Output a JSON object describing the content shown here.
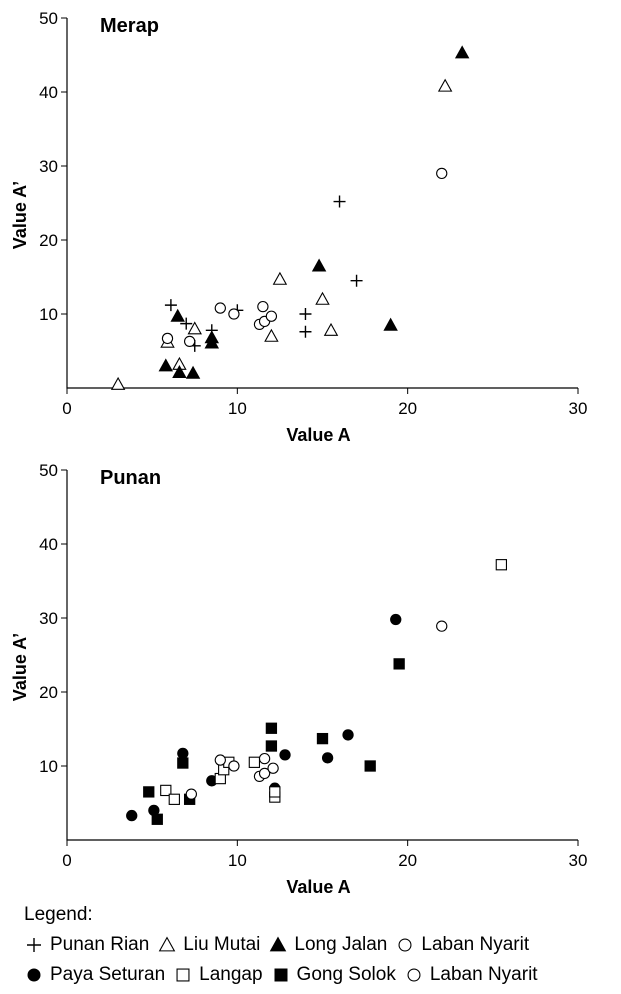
{
  "chart_data": [
    {
      "type": "scatter",
      "title": "Merap",
      "xlabel": "Value A",
      "ylabel": "Value A’",
      "xlim": [
        0,
        30
      ],
      "ylim": [
        0,
        50
      ],
      "xticks": [
        "0",
        "10",
        "20",
        "30"
      ],
      "yticks": [
        "10",
        "20",
        "30",
        "40",
        "50"
      ],
      "grid": false,
      "series": [
        {
          "name": "Punan Rian",
          "marker": "plus",
          "points": [
            [
              6.1,
              11.2
            ],
            [
              7,
              8.7
            ],
            [
              8.5,
              7.8
            ],
            [
              7.5,
              5.7
            ],
            [
              10,
              10.5
            ],
            [
              14,
              10
            ],
            [
              14,
              7.6
            ],
            [
              16,
              25.2
            ],
            [
              17,
              14.5
            ]
          ]
        },
        {
          "name": "Liu Mutai",
          "marker": "triangle-open",
          "points": [
            [
              3,
              0.5
            ],
            [
              5.9,
              6.2
            ],
            [
              6.6,
              3.2
            ],
            [
              7.5,
              8
            ],
            [
              12,
              7
            ],
            [
              12.5,
              14.7
            ],
            [
              15,
              12
            ],
            [
              15.5,
              7.8
            ],
            [
              22.2,
              40.8
            ]
          ]
        },
        {
          "name": "Long Jalan",
          "marker": "triangle-filled",
          "points": [
            [
              5.8,
              3
            ],
            [
              6.5,
              9.7
            ],
            [
              6.6,
              2.1
            ],
            [
              7.4,
              2
            ],
            [
              8.5,
              6.8
            ],
            [
              8.5,
              6.1
            ],
            [
              14.8,
              16.5
            ],
            [
              19,
              8.5
            ],
            [
              23.2,
              45.3
            ]
          ]
        },
        {
          "name": "Laban Nyarit",
          "marker": "circle-open",
          "points": [
            [
              5.9,
              6.7
            ],
            [
              7.2,
              6.3
            ],
            [
              9,
              10.8
            ],
            [
              9.8,
              10
            ],
            [
              11.3,
              8.6
            ],
            [
              11.5,
              11
            ],
            [
              11.6,
              9
            ],
            [
              12,
              9.7
            ],
            [
              22,
              29
            ]
          ]
        }
      ]
    },
    {
      "type": "scatter",
      "title": "Punan",
      "xlabel": "Value A",
      "ylabel": "Value A’",
      "xlim": [
        0,
        30
      ],
      "ylim": [
        0,
        50
      ],
      "xticks": [
        "0",
        "10",
        "20",
        "30"
      ],
      "yticks": [
        "10",
        "20",
        "30",
        "40",
        "50"
      ],
      "grid": false,
      "series": [
        {
          "name": "Paya Seturan",
          "marker": "circle-filled",
          "points": [
            [
              3.8,
              3.3
            ],
            [
              5.1,
              4
            ],
            [
              6.8,
              11.7
            ],
            [
              8.5,
              8
            ],
            [
              12.2,
              7
            ],
            [
              12.8,
              11.5
            ],
            [
              15.3,
              11.1
            ],
            [
              16.5,
              14.2
            ],
            [
              19.3,
              29.8
            ]
          ]
        },
        {
          "name": "Langap",
          "marker": "square-open",
          "points": [
            [
              5.8,
              6.7
            ],
            [
              6.3,
              5.5
            ],
            [
              9,
              8.3
            ],
            [
              9.2,
              9.5
            ],
            [
              9.5,
              10.5
            ],
            [
              11,
              10.5
            ],
            [
              12.2,
              5.8
            ],
            [
              12.2,
              6.5
            ],
            [
              25.5,
              37.2
            ]
          ]
        },
        {
          "name": "Gong Solok",
          "marker": "square-filled",
          "points": [
            [
              4.8,
              6.5
            ],
            [
              5.3,
              2.8
            ],
            [
              6.8,
              10.4
            ],
            [
              7.2,
              5.5
            ],
            [
              12,
              15.1
            ],
            [
              12,
              12.7
            ],
            [
              15,
              13.7
            ],
            [
              17.8,
              10
            ],
            [
              19.5,
              23.8
            ]
          ]
        },
        {
          "name": "Laban Nyarit",
          "marker": "circle-open",
          "points": [
            [
              7.3,
              6.2
            ],
            [
              9,
              10.8
            ],
            [
              9.8,
              10
            ],
            [
              11.3,
              8.6
            ],
            [
              11.6,
              9
            ],
            [
              11.6,
              11
            ],
            [
              12.1,
              9.7
            ],
            [
              22,
              28.9
            ]
          ]
        }
      ]
    }
  ],
  "legend": {
    "title": "Legend:",
    "rows": [
      [
        {
          "label": "Punan Rian",
          "marker": "plus"
        },
        {
          "label": "Liu Mutai",
          "marker": "triangle-open"
        },
        {
          "label": "Long Jalan",
          "marker": "triangle-filled"
        },
        {
          "label": "Laban Nyarit",
          "marker": "circle-open"
        }
      ],
      [
        {
          "label": "Paya Seturan",
          "marker": "circle-filled"
        },
        {
          "label": "Langap",
          "marker": "square-open"
        },
        {
          "label": "Gong Solok",
          "marker": "square-filled"
        },
        {
          "label": "Laban Nyarit",
          "marker": "circle-open"
        }
      ]
    ]
  },
  "colors": {
    "ink": "#000000",
    "background": "#ffffff"
  }
}
